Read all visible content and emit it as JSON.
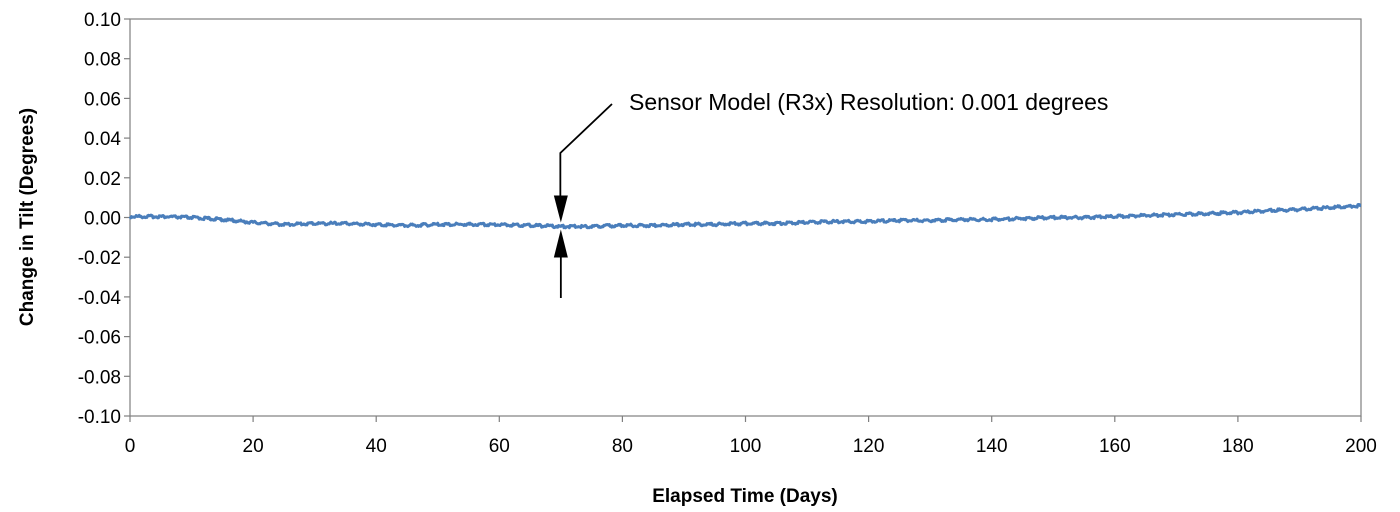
{
  "chart_data": {
    "type": "line",
    "title": "",
    "xlabel": "Elapsed Time (Days)",
    "ylabel": "Change in Tilt (Degrees)",
    "xlim": [
      0,
      200
    ],
    "ylim": [
      -0.1,
      0.1
    ],
    "x_ticks": [
      0,
      20,
      40,
      60,
      80,
      100,
      120,
      140,
      160,
      180,
      200
    ],
    "x_tick_labels": [
      "0",
      "20",
      "40",
      "60",
      "80",
      "100",
      "120",
      "140",
      "160",
      "180",
      "200"
    ],
    "y_ticks": [
      0.1,
      0.08,
      0.06,
      0.04,
      0.02,
      0.0,
      -0.02,
      -0.04,
      -0.06,
      -0.08,
      -0.1
    ],
    "y_tick_labels": [
      "0.10",
      "0.08",
      "0.06",
      "0.04",
      "0.02",
      "0.00",
      "-0.02",
      "-0.04",
      "-0.06",
      "-0.08",
      "-0.10"
    ],
    "grid": false,
    "legend": "none",
    "series": [
      {
        "color": "#4a7ebb",
        "x": [
          0,
          5,
          10,
          15,
          20,
          25,
          30,
          35,
          40,
          45,
          50,
          55,
          60,
          65,
          70,
          75,
          80,
          85,
          90,
          95,
          100,
          105,
          110,
          115,
          120,
          125,
          130,
          135,
          140,
          145,
          150,
          155,
          160,
          165,
          170,
          175,
          180,
          185,
          190,
          195,
          200
        ],
        "y": [
          0.0005,
          0.0005,
          0.0,
          -0.001,
          -0.0025,
          -0.0035,
          -0.003,
          -0.003,
          -0.0035,
          -0.004,
          -0.0035,
          -0.0035,
          -0.0035,
          -0.004,
          -0.0045,
          -0.0045,
          -0.004,
          -0.004,
          -0.0035,
          -0.0035,
          -0.003,
          -0.003,
          -0.0025,
          -0.002,
          -0.002,
          -0.0015,
          -0.0015,
          -0.001,
          -0.001,
          -0.0005,
          0.0,
          0.0,
          0.0005,
          0.001,
          0.0015,
          0.002,
          0.0025,
          0.0035,
          0.004,
          0.005,
          0.006
        ]
      }
    ],
    "annotation": {
      "text": "Sensor Model (R3x) Resolution: 0.001 degrees",
      "x": 70,
      "y": -0.004
    }
  }
}
